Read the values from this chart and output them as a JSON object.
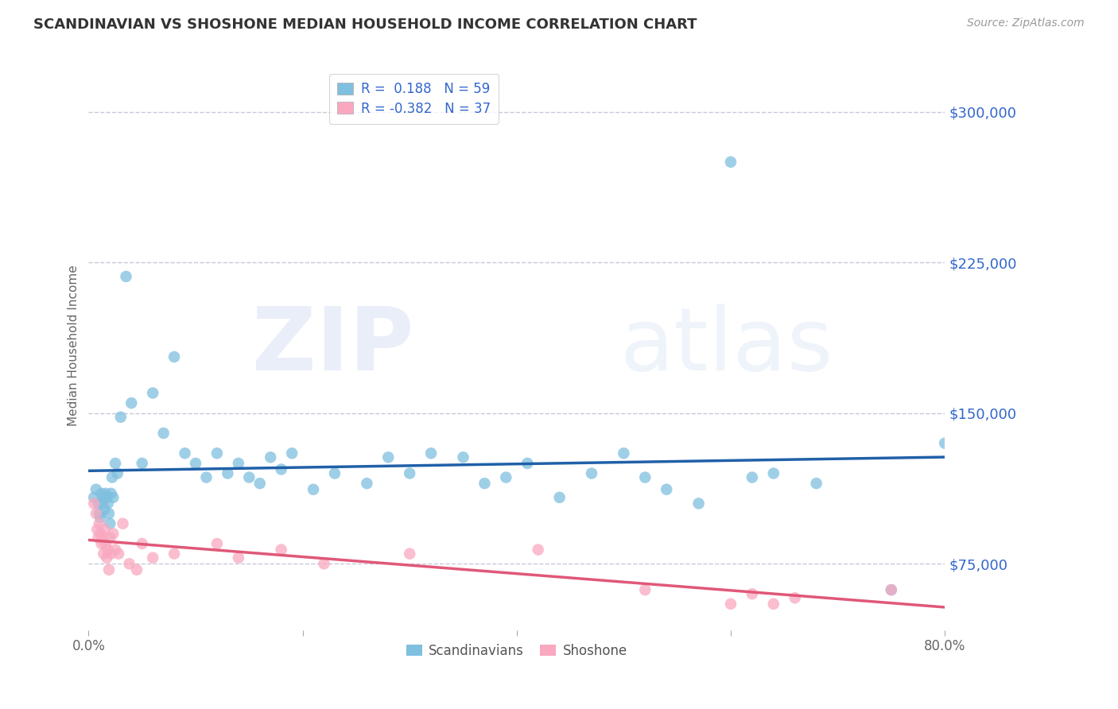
{
  "title": "SCANDINAVIAN VS SHOSHONE MEDIAN HOUSEHOLD INCOME CORRELATION CHART",
  "source": "Source: ZipAtlas.com",
  "ylabel": "Median Household Income",
  "yticks": [
    75000,
    150000,
    225000,
    300000
  ],
  "ytick_labels": [
    "$75,000",
    "$150,000",
    "$225,000",
    "$300,000"
  ],
  "xlim": [
    0.0,
    80.0
  ],
  "ylim": [
    42000,
    325000
  ],
  "legend_r1": "R =  0.188   N = 59",
  "legend_r2": "R = -0.382   N = 37",
  "scandinavian_color": "#7fbfdf",
  "shoshone_color": "#f9a8c0",
  "line_color_scand": "#2060a8",
  "line_color_shosh": "#e05878",
  "background_color": "#ffffff",
  "grid_color": "#c8c8d8",
  "scand_x": [
    0.5,
    0.7,
    0.9,
    1.0,
    1.1,
    1.2,
    1.3,
    1.4,
    1.5,
    1.6,
    1.7,
    1.8,
    1.9,
    2.0,
    2.1,
    2.2,
    2.3,
    2.5,
    2.7,
    3.0,
    3.5,
    4.0,
    5.0,
    6.0,
    7.0,
    8.0,
    9.0,
    10.0,
    11.0,
    12.0,
    13.0,
    14.0,
    15.0,
    16.0,
    17.0,
    18.0,
    19.0,
    21.0,
    23.0,
    26.0,
    28.0,
    30.0,
    32.0,
    35.0,
    37.0,
    39.0,
    41.0,
    44.0,
    47.0,
    50.0,
    52.0,
    54.0,
    57.0,
    60.0,
    62.0,
    64.0,
    68.0,
    75.0,
    80.0
  ],
  "scand_y": [
    108000,
    112000,
    105000,
    100000,
    98000,
    110000,
    105000,
    108000,
    102000,
    110000,
    108000,
    105000,
    100000,
    95000,
    110000,
    118000,
    108000,
    125000,
    120000,
    148000,
    218000,
    155000,
    125000,
    160000,
    140000,
    178000,
    130000,
    125000,
    118000,
    130000,
    120000,
    125000,
    118000,
    115000,
    128000,
    122000,
    130000,
    112000,
    120000,
    115000,
    128000,
    120000,
    130000,
    128000,
    115000,
    118000,
    125000,
    108000,
    120000,
    130000,
    118000,
    112000,
    105000,
    275000,
    118000,
    120000,
    115000,
    62000,
    135000
  ],
  "shosh_x": [
    0.5,
    0.7,
    0.8,
    0.9,
    1.0,
    1.1,
    1.2,
    1.3,
    1.4,
    1.5,
    1.6,
    1.7,
    1.8,
    1.9,
    2.0,
    2.1,
    2.3,
    2.5,
    2.8,
    3.2,
    3.8,
    4.5,
    5.0,
    6.0,
    8.0,
    12.0,
    14.0,
    18.0,
    22.0,
    30.0,
    42.0,
    52.0,
    60.0,
    62.0,
    64.0,
    66.0,
    75.0
  ],
  "shosh_y": [
    105000,
    100000,
    92000,
    88000,
    95000,
    90000,
    85000,
    88000,
    80000,
    92000,
    85000,
    78000,
    82000,
    72000,
    88000,
    80000,
    90000,
    82000,
    80000,
    95000,
    75000,
    72000,
    85000,
    78000,
    80000,
    85000,
    78000,
    82000,
    75000,
    80000,
    82000,
    62000,
    55000,
    60000,
    55000,
    58000,
    62000
  ]
}
